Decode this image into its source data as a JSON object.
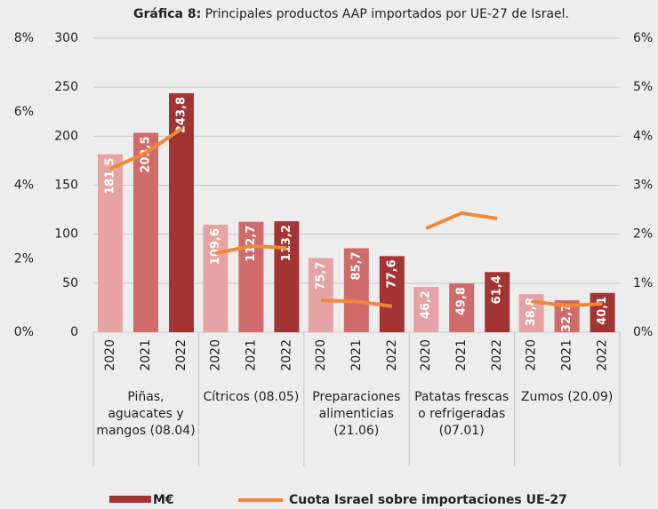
{
  "chart_data": {
    "type": "bar",
    "title_prefix": "Gráfica 8:",
    "title": "Principales productos AAP importados por UE-27 de Israel.",
    "categories": [
      "2020",
      "2021",
      "2022",
      "2020",
      "2021",
      "2022",
      "2020",
      "2021",
      "2022",
      "2020",
      "2021",
      "2022",
      "2020",
      "2021",
      "2022"
    ],
    "groups": [
      "Piñas, aguacates y mangos (08.04)",
      "Cítricos (08.05)",
      "Preparaciones alimenticias (21.06)",
      "Patatas frescas o refrigeradas (07.01)",
      "Zumos (20.09)"
    ],
    "series": [
      {
        "name": "M€",
        "type": "bar",
        "color": "#a33434",
        "colors": [
          "#e6a3a3",
          "#d06b6b",
          "#a33434"
        ],
        "values": [
          181.5,
          203.5,
          243.8,
          109.6,
          112.7,
          113.2,
          75.7,
          85.7,
          77.6,
          46.2,
          49.8,
          61.4,
          38.8,
          32.7,
          40.1
        ],
        "value_labels": [
          "181,5",
          "203,5",
          "243,8",
          "109,6",
          "112,7",
          "113,2",
          "75,7",
          "85,7",
          "77,6",
          "46,2",
          "49,8",
          "61,4",
          "38,8",
          "32,7",
          "40,1"
        ]
      },
      {
        "name": "Cuota Israel sobre importaciones UE-27",
        "type": "line",
        "color": "#f0883a",
        "axis": "y2",
        "values": [
          3.33,
          3.66,
          4.15,
          1.61,
          1.76,
          1.72,
          0.65,
          0.63,
          0.53,
          2.12,
          2.43,
          2.32,
          0.63,
          0.54,
          0.58
        ]
      }
    ],
    "ylim": [
      0,
      300
    ],
    "yticks": [
      0,
      50,
      100,
      150,
      200,
      250,
      300
    ],
    "y2lim": [
      0,
      6
    ],
    "y2ticks": [
      {
        "value": 0,
        "label": "0%"
      },
      {
        "value": 1,
        "label": "1%"
      },
      {
        "value": 2,
        "label": "2%"
      },
      {
        "value": 3,
        "label": "3%"
      },
      {
        "value": 4,
        "label": "4%"
      },
      {
        "value": 5,
        "label": "5%"
      },
      {
        "value": 6,
        "label": "6%"
      }
    ],
    "y3lim": [
      0,
      8
    ],
    "y3ticks": [
      {
        "value": 0,
        "label": "0%"
      },
      {
        "value": 2,
        "label": "2%"
      },
      {
        "value": 4,
        "label": "4%"
      },
      {
        "value": 6,
        "label": "6%"
      },
      {
        "value": 8,
        "label": "8%"
      }
    ],
    "grid": true
  }
}
